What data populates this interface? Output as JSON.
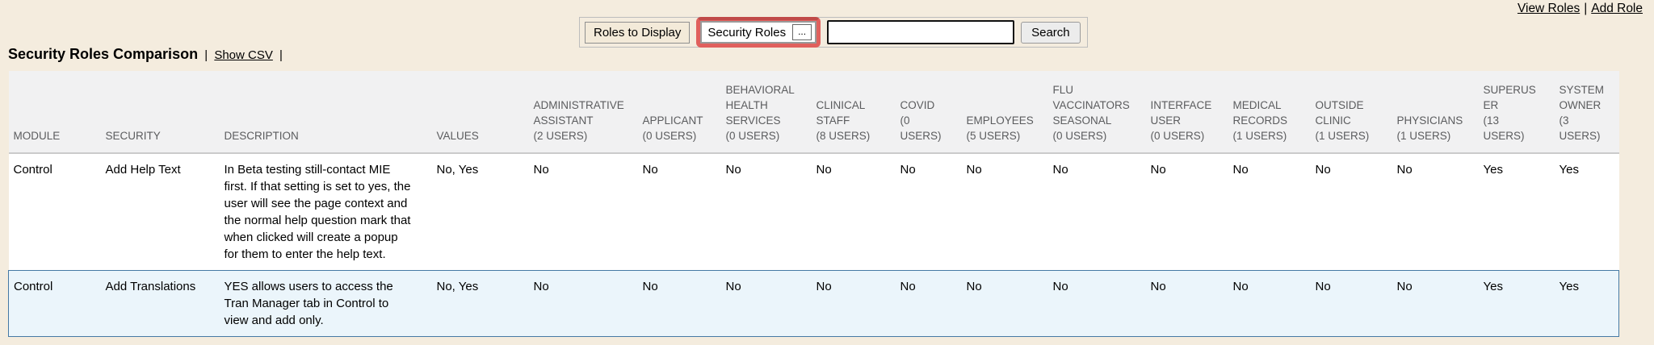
{
  "page": {
    "background_color": "#f4ecde",
    "highlight_ring_color": "#e0605d",
    "row_highlight_color": "#ebf5fb",
    "row_highlight_border_color": "#4679a4"
  },
  "top_links": {
    "view_roles": "View Roles",
    "separator": "|",
    "add_role": "Add Role"
  },
  "toolbar": {
    "roles_to_display_label": "Roles to Display",
    "roles_select_value": "Security Roles",
    "ellipsis_label": "...",
    "search_input_value": "",
    "search_button_label": "Search"
  },
  "heading": {
    "title": "Security Roles Comparison",
    "sep1": "|",
    "show_csv_label": "Show CSV",
    "sep2": "|"
  },
  "table": {
    "fixed_columns": [
      "MODULE",
      "SECURITY",
      "DESCRIPTION",
      "VALUES"
    ],
    "role_columns": [
      {
        "name": "ADMINISTRATIVE ASSISTANT",
        "users": "(2 USERS)"
      },
      {
        "name": "APPLICANT",
        "users": "(0 USERS)"
      },
      {
        "name": "BEHAVIORAL HEALTH SERVICES",
        "users": "(0 USERS)"
      },
      {
        "name": "CLINICAL STAFF",
        "users": "(8 USERS)"
      },
      {
        "name": "COVID",
        "users": "(0 USERS)"
      },
      {
        "name": "EMPLOYEES",
        "users": "(5 USERS)"
      },
      {
        "name": "FLU VACCINATORS SEASONAL",
        "users": "(0 USERS)"
      },
      {
        "name": "INTERFACE USER",
        "users": "(0 USERS)"
      },
      {
        "name": "MEDICAL RECORDS",
        "users": "(1 USERS)"
      },
      {
        "name": "OUTSIDE CLINIC",
        "users": "(1 USERS)"
      },
      {
        "name": "PHYSICIANS",
        "users": "(1 USERS)"
      },
      {
        "name": "SUPERUSER",
        "users": "(13 USERS)"
      },
      {
        "name": "SYSTEM OWNER",
        "users": "(3 USERS)"
      }
    ],
    "rows": [
      {
        "module": "Control",
        "security": "Add Help Text",
        "description": "In Beta testing still-contact MIE first. If that setting is set to yes, the user will see the page context and the normal help question mark that when clicked will create a popup for them to enter the help text.",
        "values": "No, Yes",
        "role_values": [
          "No",
          "No",
          "No",
          "No",
          "No",
          "No",
          "No",
          "No",
          "No",
          "No",
          "No",
          "Yes",
          "Yes"
        ],
        "highlighted": false
      },
      {
        "module": "Control",
        "security": "Add Translations",
        "description": "YES allows users to access the Tran Manager tab in Control to view and add only.",
        "values": "No, Yes",
        "role_values": [
          "No",
          "No",
          "No",
          "No",
          "No",
          "No",
          "No",
          "No",
          "No",
          "No",
          "No",
          "Yes",
          "Yes"
        ],
        "highlighted": true
      }
    ]
  }
}
